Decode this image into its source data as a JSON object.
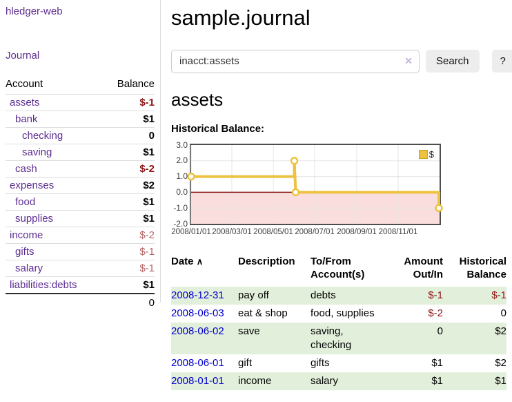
{
  "sidebar": {
    "brand": "hledger-web",
    "nav_journal": "Journal",
    "col_account": "Account",
    "col_balance": "Balance",
    "accounts": [
      {
        "name": "assets",
        "balance": "$-1",
        "level": 1,
        "emph": true,
        "neg": "dark"
      },
      {
        "name": "bank",
        "balance": "$1",
        "level": 2,
        "emph": true
      },
      {
        "name": "checking",
        "balance": "0",
        "level": 3,
        "emph": true
      },
      {
        "name": "saving",
        "balance": "$1",
        "level": 3,
        "emph": true
      },
      {
        "name": "cash",
        "balance": "$-2",
        "level": 2,
        "emph": true,
        "neg": "dark"
      },
      {
        "name": "expenses",
        "balance": "$2",
        "level": 1
      },
      {
        "name": "food",
        "balance": "$1",
        "level": 2
      },
      {
        "name": "supplies",
        "balance": "$1",
        "level": 2
      },
      {
        "name": "income",
        "balance": "$-2",
        "level": 1,
        "neg": "light"
      },
      {
        "name": "gifts",
        "balance": "$-1",
        "level": 2,
        "neg": "light"
      },
      {
        "name": "salary",
        "balance": "$-1",
        "level": 2,
        "neg": "light",
        "variant": "blue"
      },
      {
        "name": "liabilities:debts",
        "balance": "$1",
        "level": 1
      }
    ],
    "total": "0"
  },
  "main": {
    "title": "sample.journal",
    "search": {
      "value": "inacct:assets",
      "clear_icon": "✕",
      "button": "Search",
      "help": "?"
    },
    "account_heading": "assets",
    "chart_label": "Historical Balance:"
  },
  "chart_data": {
    "type": "line",
    "step": true,
    "title": "Historical Balance",
    "legend": "$",
    "legend_position": "top-right",
    "grid": true,
    "xlim": [
      "2008-01-01",
      "2009-01-01"
    ],
    "ylim": [
      -2,
      3
    ],
    "yticks": [
      "3.0",
      "2.0",
      "1.0",
      "0.0",
      "-1.0",
      "-2.0"
    ],
    "xticks": [
      "2008/01/01",
      "2008/03/01",
      "2008/05/01",
      "2008/07/01",
      "2008/09/01",
      "2008/11/01"
    ],
    "series": [
      {
        "name": "$",
        "color": "#edc240",
        "points": [
          [
            "2008-01-01",
            1
          ],
          [
            "2008-06-01",
            2
          ],
          [
            "2008-06-02",
            2
          ],
          [
            "2008-06-03",
            0
          ],
          [
            "2008-12-31",
            -1
          ]
        ]
      }
    ],
    "polyline": [
      [
        "2008-01-01",
        1
      ],
      [
        "2008-06-01",
        1
      ],
      [
        "2008-06-01",
        2
      ],
      [
        "2008-06-03",
        0
      ],
      [
        "2008-12-31",
        0
      ],
      [
        "2008-12-31",
        -1
      ]
    ],
    "markers": [
      [
        "2008-01-01",
        1
      ],
      [
        "2008-06-01",
        2
      ],
      [
        "2008-06-03",
        0
      ],
      [
        "2008-12-31",
        -1
      ]
    ],
    "negative_fill": "#fadddd",
    "zero_line_color": "#8b1a1a",
    "grid_color": "#e5e5e5",
    "border_color": "#4d4d4d"
  },
  "register": {
    "headers": {
      "date": "Date",
      "sort_icon": "∧",
      "description": "Description",
      "accounts": "To/From Account(s)",
      "amount": "Amount Out/In",
      "balance": "Historical Balance"
    },
    "rows": [
      {
        "date": "2008-12-31",
        "description": "pay off",
        "accounts": "debts",
        "amount": "$-1",
        "balance": "$-1",
        "amount_neg": true,
        "balance_neg": true,
        "stripe": "green"
      },
      {
        "date": "2008-06-03",
        "description": "eat & shop",
        "accounts": "food, supplies",
        "amount": "$-2",
        "balance": "0",
        "amount_neg": true
      },
      {
        "date": "2008-06-02",
        "description": "save",
        "accounts": "saving,\nchecking",
        "amount": "0",
        "balance": "$2",
        "stripe": "green"
      },
      {
        "date": "2008-06-01",
        "description": "gift",
        "accounts": "gifts",
        "amount": "$1",
        "balance": "$2"
      },
      {
        "date": "2008-01-01",
        "description": "income",
        "accounts": "salary",
        "amount": "$1",
        "balance": "$1",
        "stripe": "green"
      }
    ]
  }
}
